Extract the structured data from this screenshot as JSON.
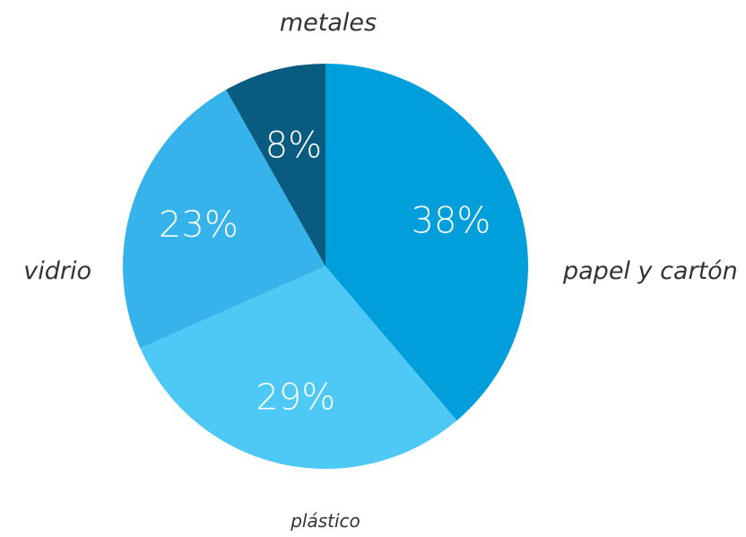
{
  "chart_data": {
    "type": "pie",
    "title": "",
    "slices": [
      {
        "label": "papel y cartón",
        "value": 38,
        "display": "38%",
        "color": "#009fdb"
      },
      {
        "label": "plástico",
        "value": 29,
        "display": "29%",
        "color": "#4ec9f5"
      },
      {
        "label": "vidrio",
        "value": 23,
        "display": "23%",
        "color": "#35b3ea"
      },
      {
        "label": "metales",
        "value": 8,
        "display": "8%",
        "color": "#0a5b80"
      }
    ],
    "start_angle_deg": 0,
    "direction": "clockwise",
    "legend": "none"
  }
}
